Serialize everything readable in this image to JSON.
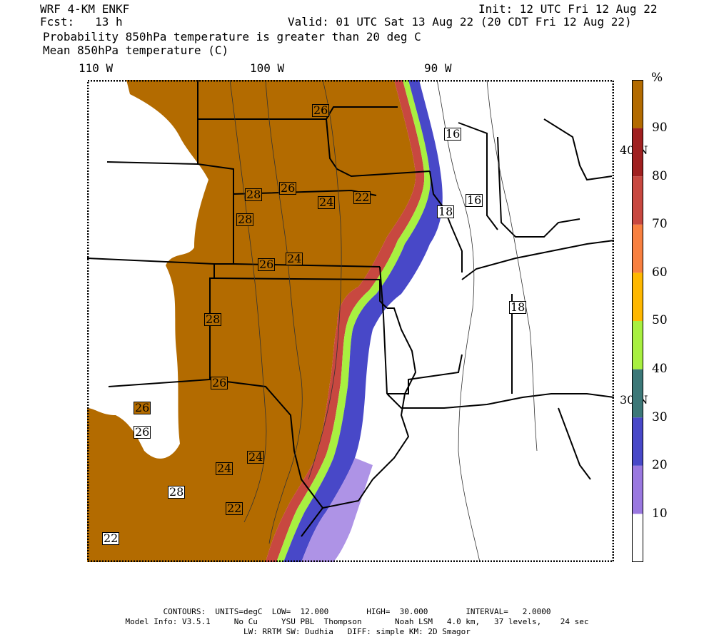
{
  "header": {
    "model": "WRF 4-KM ENKF",
    "fcst": "Fcst:   13 h",
    "init": "Init: 12 UTC Fri 12 Aug 22",
    "valid": "Valid: 01 UTC Sat 13 Aug 22 (20 CDT Fri 12 Aug 22)",
    "line3": "Probability 850hPa temperature is greater than 20 deg C",
    "line4": "Mean 850hPa temperature (C)"
  },
  "lon_labels": [
    "110 W",
    "100 W",
    "90 W"
  ],
  "lat_labels": [
    "40 N",
    "30 N"
  ],
  "colorbar": {
    "unit": "%",
    "ticks": [
      "90",
      "80",
      "70",
      "60",
      "50",
      "40",
      "30",
      "20",
      "10"
    ],
    "colors": [
      "#ffffff",
      "#9a78e0",
      "#4848c8",
      "#3c7878",
      "#a8f040",
      "#ffb800",
      "#f88040",
      "#c84840",
      "#a02020",
      "#b36b00"
    ]
  },
  "contour_labels": [
    {
      "text": "26",
      "tone": "dark"
    },
    {
      "text": "16",
      "tone": "light"
    },
    {
      "text": "26",
      "tone": "dark"
    },
    {
      "text": "28",
      "tone": "dark"
    },
    {
      "text": "24",
      "tone": "dark"
    },
    {
      "text": "22",
      "tone": "dark"
    },
    {
      "text": "16",
      "tone": "light"
    },
    {
      "text": "28",
      "tone": "dark"
    },
    {
      "text": "18",
      "tone": "light"
    },
    {
      "text": "26",
      "tone": "dark"
    },
    {
      "text": "24",
      "tone": "dark"
    },
    {
      "text": "28",
      "tone": "dark"
    },
    {
      "text": "18",
      "tone": "light"
    },
    {
      "text": "26",
      "tone": "dark"
    },
    {
      "text": "26",
      "tone": "dark"
    },
    {
      "text": "26",
      "tone": "light"
    },
    {
      "text": "24",
      "tone": "dark"
    },
    {
      "text": "24",
      "tone": "dark"
    },
    {
      "text": "28",
      "tone": "light"
    },
    {
      "text": "22",
      "tone": "dark"
    },
    {
      "text": "22",
      "tone": "light"
    }
  ],
  "footer": {
    "line1": "CONTOURS:  UNITS=degC  LOW=  12.000        HIGH=  30.000        INTERVAL=   2.0000",
    "line2": "Model Info: V3.5.1     No Cu     YSU PBL  Thompson       Noah LSM   4.0 km,   37 levels,    24 sec",
    "line3": "LW: RRTM SW: Dudhia   DIFF: simple KM: 2D Smagor"
  }
}
